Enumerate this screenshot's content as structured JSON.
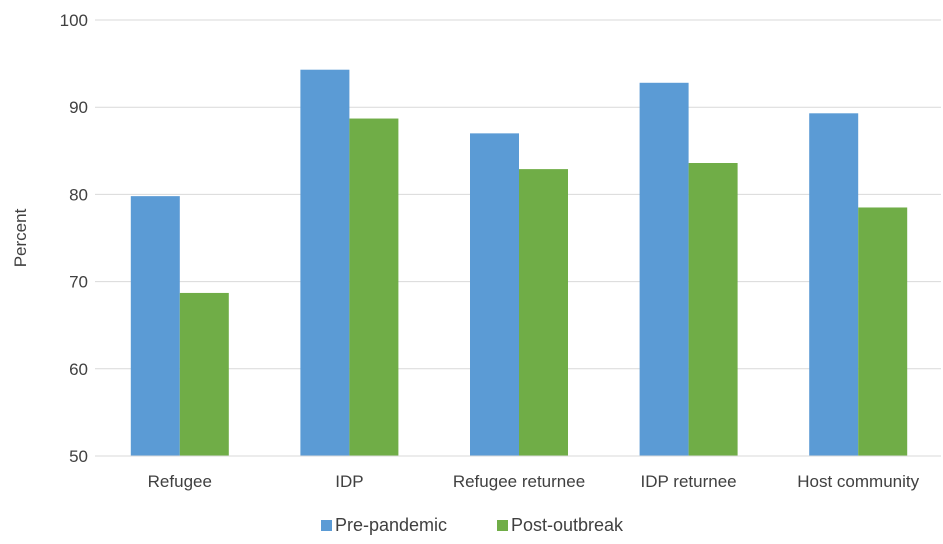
{
  "chart_data": {
    "type": "bar",
    "title": "",
    "xlabel": "",
    "ylabel": "Percent",
    "ylim": [
      50,
      100
    ],
    "yticks": [
      50,
      60,
      70,
      80,
      90,
      100
    ],
    "grid": true,
    "legend_position": "bottom",
    "categories": [
      "Refugee",
      "IDP",
      "Refugee returnee",
      "IDP returnee",
      "Host community"
    ],
    "series": [
      {
        "name": "Pre-pandemic",
        "color": "#5b9bd5",
        "values": [
          79.8,
          94.3,
          87.0,
          92.8,
          89.3
        ]
      },
      {
        "name": "Post-outbreak",
        "color": "#70ad47",
        "values": [
          68.7,
          88.7,
          82.9,
          83.6,
          78.5
        ]
      }
    ]
  }
}
